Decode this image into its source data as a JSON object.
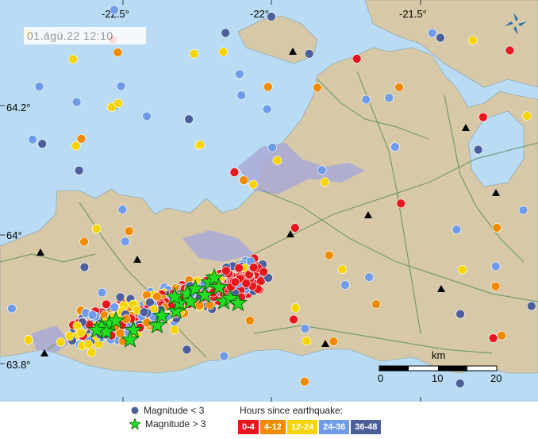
{
  "timestamp": "01.ágú.22  12:10",
  "longitude_labels": [
    "-22.5°",
    "-22°",
    "-21.5°"
  ],
  "latitude_labels": [
    "64.2°",
    "64°",
    "63.8°"
  ],
  "scale_bar": {
    "unit_label": "km",
    "ticks": [
      "0",
      "10",
      "20"
    ]
  },
  "legend": {
    "small_label": "Magnitude < 3",
    "large_label": "Magnitude > 3",
    "hours_title": "Hours since earthquake:",
    "hours": [
      {
        "label": "0-4",
        "color": "#e8171d"
      },
      {
        "label": "4-12",
        "color": "#f08a00"
      },
      {
        "label": "12-24",
        "color": "#f5d400"
      },
      {
        "label": "24-36",
        "color": "#6f9be8"
      },
      {
        "label": "36-48",
        "color": "#4d5f9a"
      }
    ]
  },
  "colors": {
    "sea": "#b9dcf4",
    "land": "#d7c9a8",
    "lava": "#a9a9d6",
    "roads": "#5f8f5f",
    "star": "#22dd22"
  },
  "markers": {
    "star_count": 22,
    "volcano_icon": "black-triangle-icon",
    "compass_icon": "compass-icon"
  }
}
